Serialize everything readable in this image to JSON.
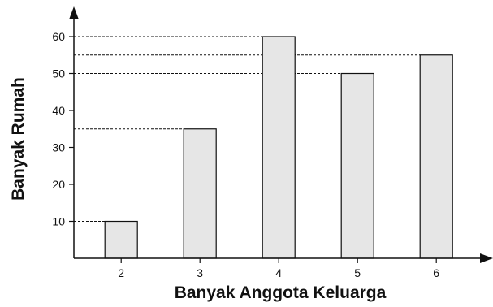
{
  "chart_data": {
    "type": "bar",
    "xlabel": "Banyak Anggota Keluarga",
    "ylabel": "Banyak Rumah",
    "categories": [
      "2",
      "3",
      "4",
      "5",
      "6"
    ],
    "values": [
      10,
      35,
      60,
      50,
      55
    ],
    "yticks": [
      "10",
      "20",
      "30",
      "40",
      "50",
      "60"
    ],
    "ylim": [
      0,
      60
    ],
    "grid": false,
    "reference_lines": "dashed",
    "colors": {
      "bar_fill": "#e6e6e6",
      "bar_stroke": "#111111",
      "axis": "#111111"
    }
  }
}
